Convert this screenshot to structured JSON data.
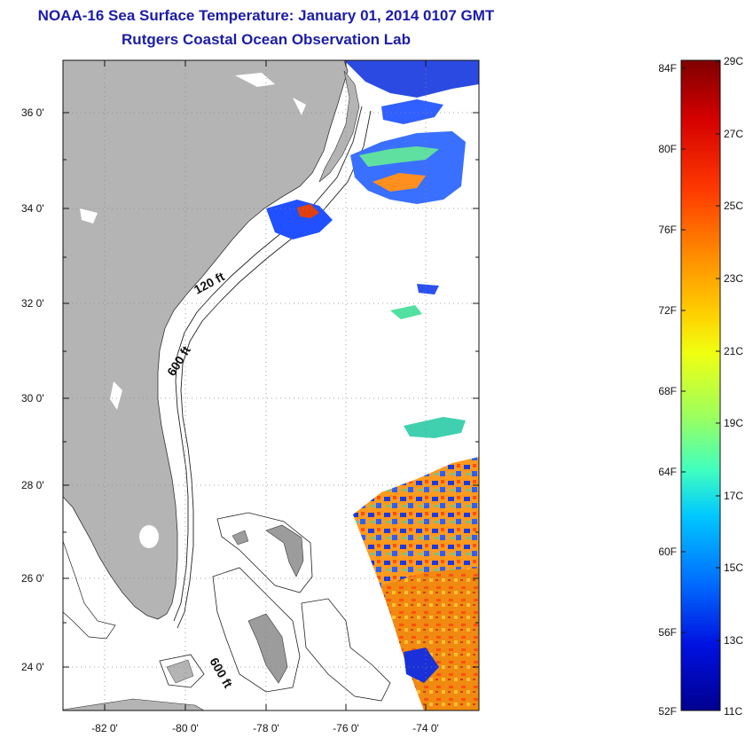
{
  "title": {
    "line1": "NOAA-16 Sea Surface Temperature:  January 01, 2014 0107 GMT",
    "line2": "Rutgers Coastal Ocean Observation Lab"
  },
  "map": {
    "lon_labels": [
      "-82 0'",
      "-80 0'",
      "-78 0'",
      "-76 0'",
      "-74 0'"
    ],
    "lat_labels": [
      "36 0'",
      "34 0'",
      "32 0'",
      "30 0'",
      "28 0'",
      "26 0'",
      "24 0'"
    ],
    "contour_labels": [
      "120 ft",
      "600 ft",
      "600 ft"
    ],
    "colors": {
      "land": "#b4b4b4",
      "ocean": "#ffffff",
      "grid": "#888888"
    }
  },
  "colorbar": {
    "f_labels": [
      "84F",
      "80F",
      "76F",
      "72F",
      "68F",
      "64F",
      "60F",
      "56F",
      "52F"
    ],
    "c_labels": [
      "29C",
      "27C",
      "25C",
      "23C",
      "21C",
      "19C",
      "17C",
      "15C",
      "13C",
      "11C"
    ],
    "colors": [
      "#7f0000",
      "#d40000",
      "#ff3a00",
      "#ff8c00",
      "#ffd000",
      "#f0ff10",
      "#9aff60",
      "#40ffbf",
      "#00c8ff",
      "#0070ff",
      "#0010e0",
      "#00008f"
    ]
  }
}
